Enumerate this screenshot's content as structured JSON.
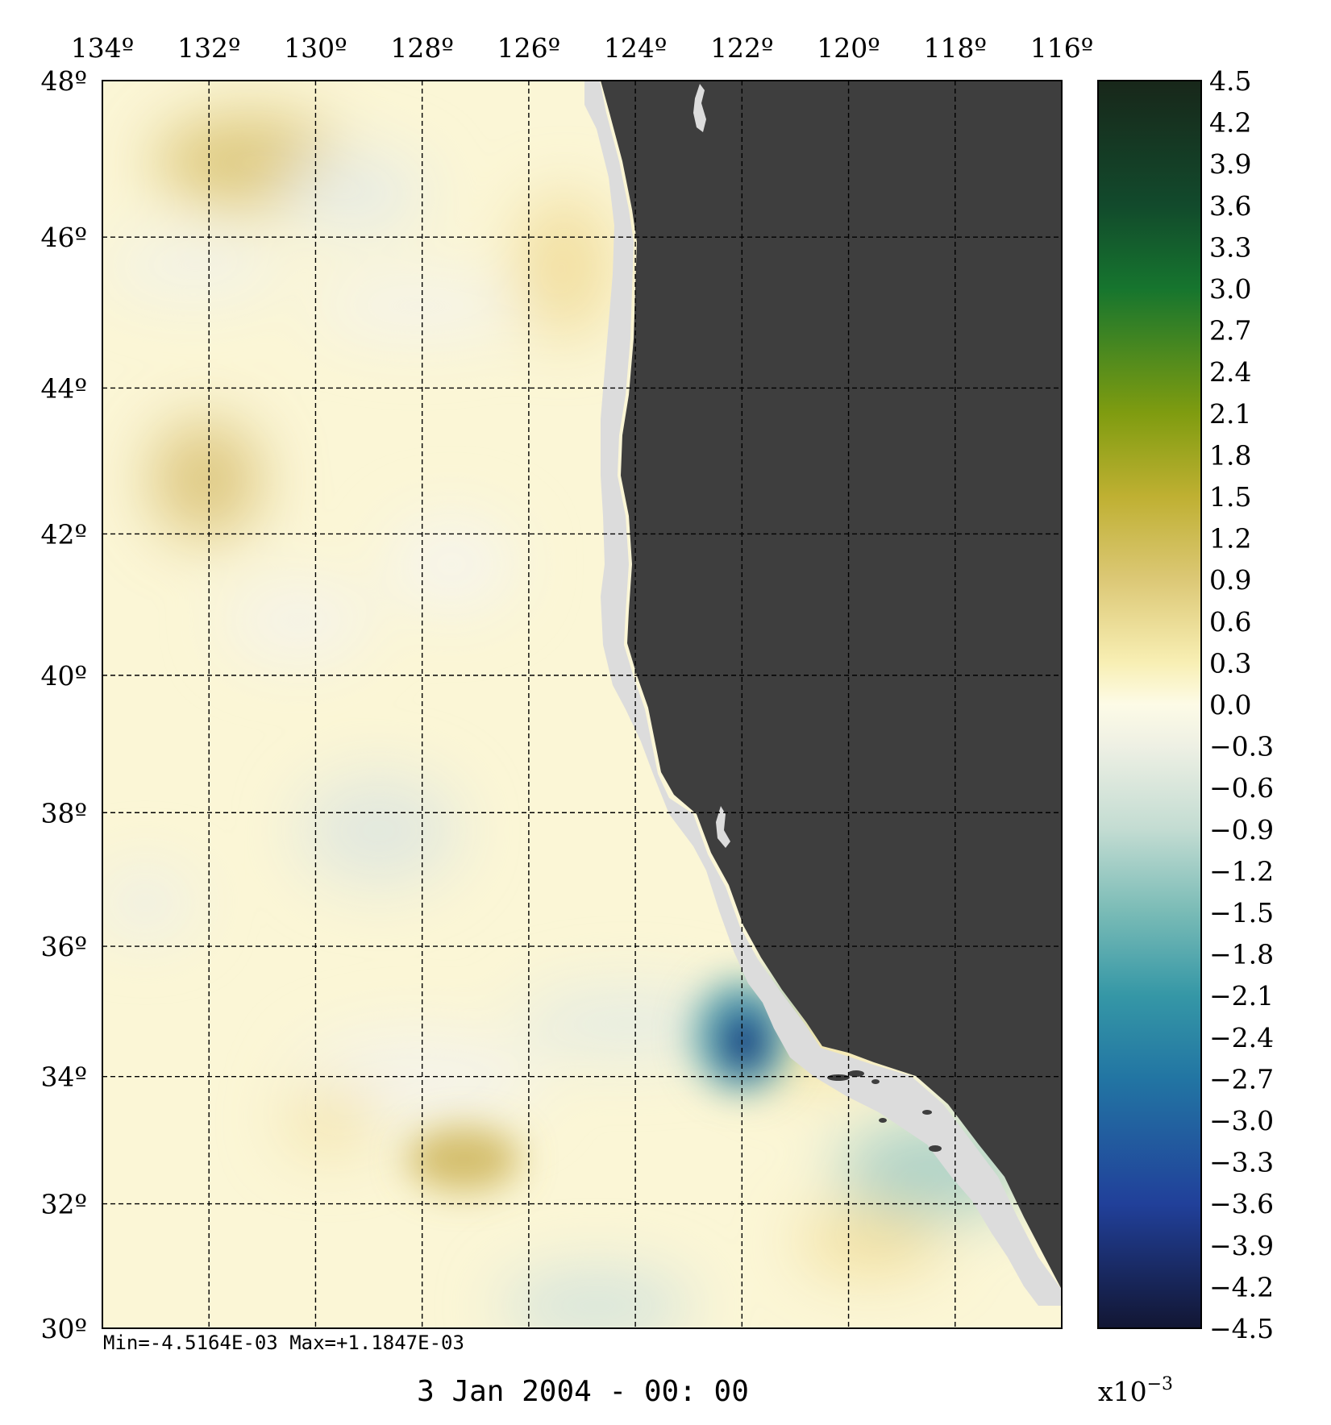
{
  "map": {
    "lon_labels": [
      "134º",
      "132º",
      "130º",
      "128º",
      "126º",
      "124º",
      "122º",
      "120º",
      "118º",
      "116º"
    ],
    "lat_labels": [
      "48º",
      "46º",
      "44º",
      "42º",
      "40º",
      "38º",
      "36º",
      "34º",
      "32º",
      "30º"
    ],
    "lon_values": [
      134,
      132,
      130,
      128,
      126,
      124,
      122,
      120,
      118,
      116
    ],
    "lat_values": [
      48,
      46,
      44,
      42,
      40,
      38,
      36,
      34,
      32,
      30
    ],
    "stats_text": "Min=-4.5164E-03   Max=+1.1847E-03",
    "date_text": "3 Jan 2004 - 00: 00",
    "colors": {
      "land": "#3e3e3e",
      "coast_mask": "#dcdcdc",
      "background_field": "#fbf6d6"
    }
  },
  "colorbar": {
    "tick_labels": [
      "4.5",
      "4.2",
      "3.9",
      "3.6",
      "3.3",
      "3.0",
      "2.7",
      "2.4",
      "2.1",
      "1.8",
      "1.5",
      "1.2",
      "0.9",
      "0.6",
      "0.3",
      "0.0",
      "−0.3",
      "−0.6",
      "−0.9",
      "−1.2",
      "−1.5",
      "−1.8",
      "−2.1",
      "−2.4",
      "−2.7",
      "−3.0",
      "−3.3",
      "−3.6",
      "−3.9",
      "−4.2",
      "−4.5"
    ],
    "tick_values": [
      4.5,
      4.2,
      3.9,
      3.6,
      3.3,
      3.0,
      2.7,
      2.4,
      2.1,
      1.8,
      1.5,
      1.2,
      0.9,
      0.6,
      0.3,
      0.0,
      -0.3,
      -0.6,
      -0.9,
      -1.2,
      -1.5,
      -1.8,
      -2.1,
      -2.4,
      -2.7,
      -3.0,
      -3.3,
      -3.6,
      -3.9,
      -4.2,
      -4.5
    ],
    "range": [
      -4.5,
      4.5
    ],
    "scale_base": "x10",
    "scale_exponent": "−3",
    "color_stops": [
      {
        "value": 4.5,
        "color": "#18271a"
      },
      {
        "value": 3.6,
        "color": "#124a2c"
      },
      {
        "value": 3.0,
        "color": "#16752e"
      },
      {
        "value": 2.1,
        "color": "#7f9c10"
      },
      {
        "value": 1.5,
        "color": "#bfb032"
      },
      {
        "value": 0.9,
        "color": "#dcc876"
      },
      {
        "value": 0.3,
        "color": "#f8efb4"
      },
      {
        "value": 0.0,
        "color": "#fdfbe6"
      },
      {
        "value": -0.3,
        "color": "#eef0e4"
      },
      {
        "value": -0.9,
        "color": "#c3dcd2"
      },
      {
        "value": -1.5,
        "color": "#79bbb6"
      },
      {
        "value": -2.1,
        "color": "#3597a6"
      },
      {
        "value": -2.7,
        "color": "#2275a3"
      },
      {
        "value": -3.6,
        "color": "#21409a"
      },
      {
        "value": -4.5,
        "color": "#121633"
      }
    ]
  }
}
